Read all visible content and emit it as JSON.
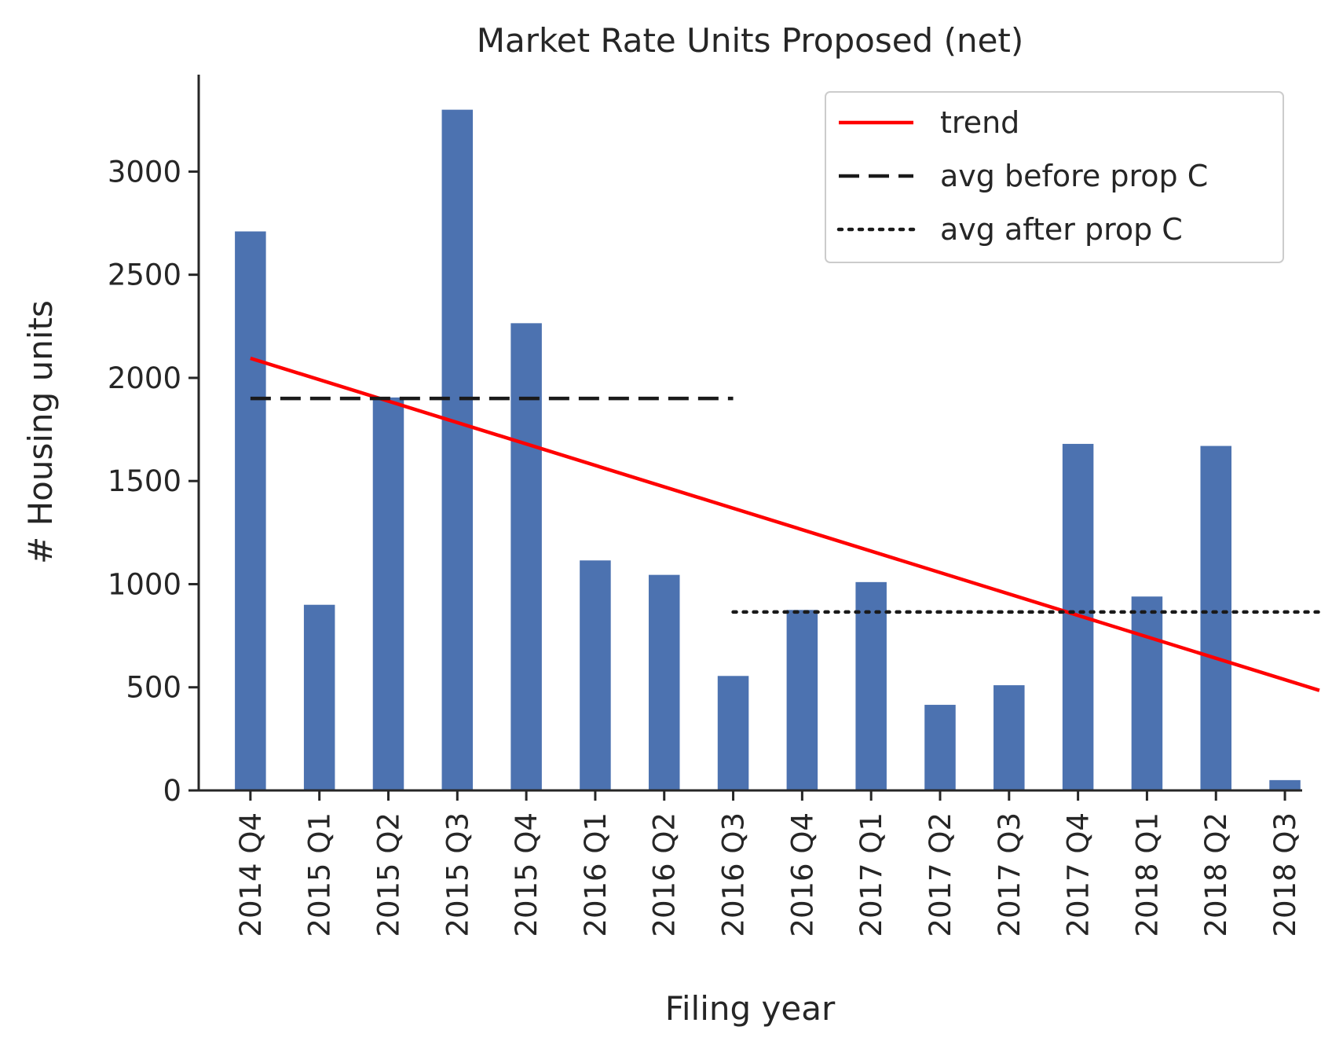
{
  "chart_data": {
    "type": "bar",
    "title": "Market Rate Units Proposed (net)",
    "xlabel": "Filing year",
    "ylabel": "# Housing units",
    "categories": [
      "2014 Q4",
      "2015 Q1",
      "2015 Q2",
      "2015 Q3",
      "2015 Q4",
      "2016 Q1",
      "2016 Q2",
      "2016 Q3",
      "2016 Q4",
      "2017 Q1",
      "2017 Q2",
      "2017 Q3",
      "2017 Q4",
      "2018 Q1",
      "2018 Q2",
      "2018 Q3"
    ],
    "values": [
      2710,
      900,
      1905,
      3300,
      2265,
      1115,
      1045,
      555,
      875,
      1010,
      415,
      510,
      1680,
      940,
      1670,
      50
    ],
    "ylim": [
      0,
      3470
    ],
    "yticks": [
      0,
      500,
      1000,
      1500,
      2000,
      2500,
      3000
    ],
    "bar_color": "#4c72b0",
    "lines": [
      {
        "name": "trend",
        "style": "solid",
        "color": "#ff0000",
        "x": [
          0,
          15.5
        ],
        "y": [
          2095,
          485
        ]
      },
      {
        "name": "avg before prop C",
        "style": "dashed",
        "color": "#1a1a1a",
        "x": [
          0,
          7
        ],
        "y": [
          1900,
          1900
        ]
      },
      {
        "name": "avg after prop C",
        "style": "dotted",
        "color": "#1a1a1a",
        "x": [
          7,
          15.5
        ],
        "y": [
          865,
          865
        ]
      }
    ],
    "legend": "top-right",
    "grid": false
  }
}
